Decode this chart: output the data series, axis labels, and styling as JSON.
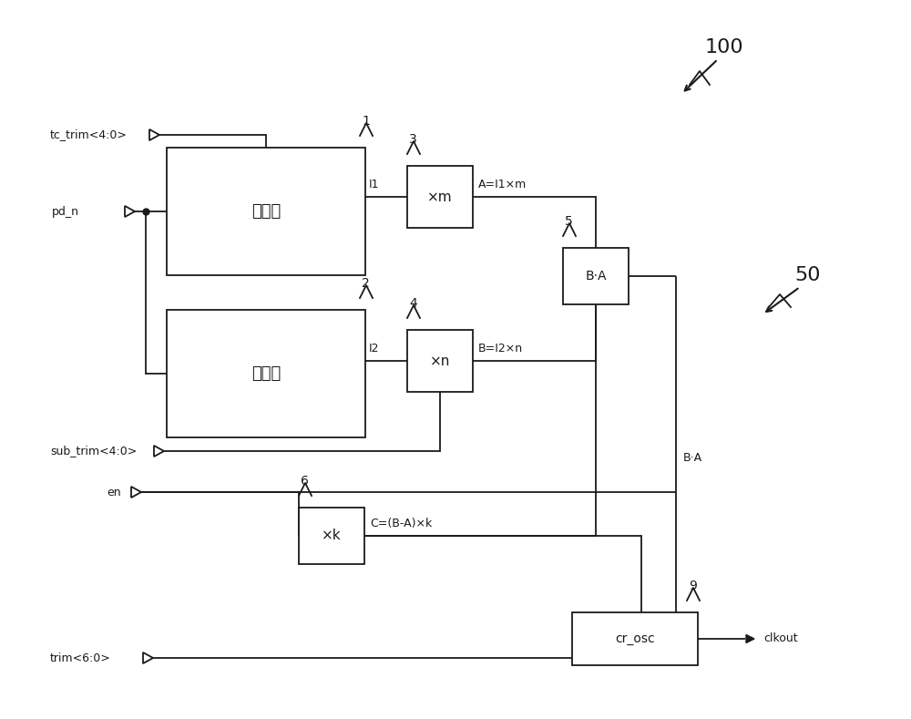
{
  "bg_color": "#ffffff",
  "lc": "#1a1a1a",
  "fig_width": 10.0,
  "fig_height": 7.89,
  "box1_label": "电流源",
  "box2_label": "电流源",
  "boxm_label": "×m",
  "boxn_label": "×n",
  "boxBA_label": "B·A",
  "boxk_label": "×k",
  "boxosc_label": "cr_osc",
  "text_I1": "I1",
  "text_I2": "I2",
  "text_A": "A=I1×m",
  "text_B": "B=I2×n",
  "text_BA_wire": "B·A",
  "text_C": "C=(B-A)×k",
  "text_tc": "tc_trim<4:0>",
  "text_pd": "pd_n",
  "text_sub": "sub_trim<4:0>",
  "text_en": "en",
  "text_trim": "trim<6:0>",
  "text_clkout": "clkout",
  "text_100": "100",
  "text_50": "50"
}
